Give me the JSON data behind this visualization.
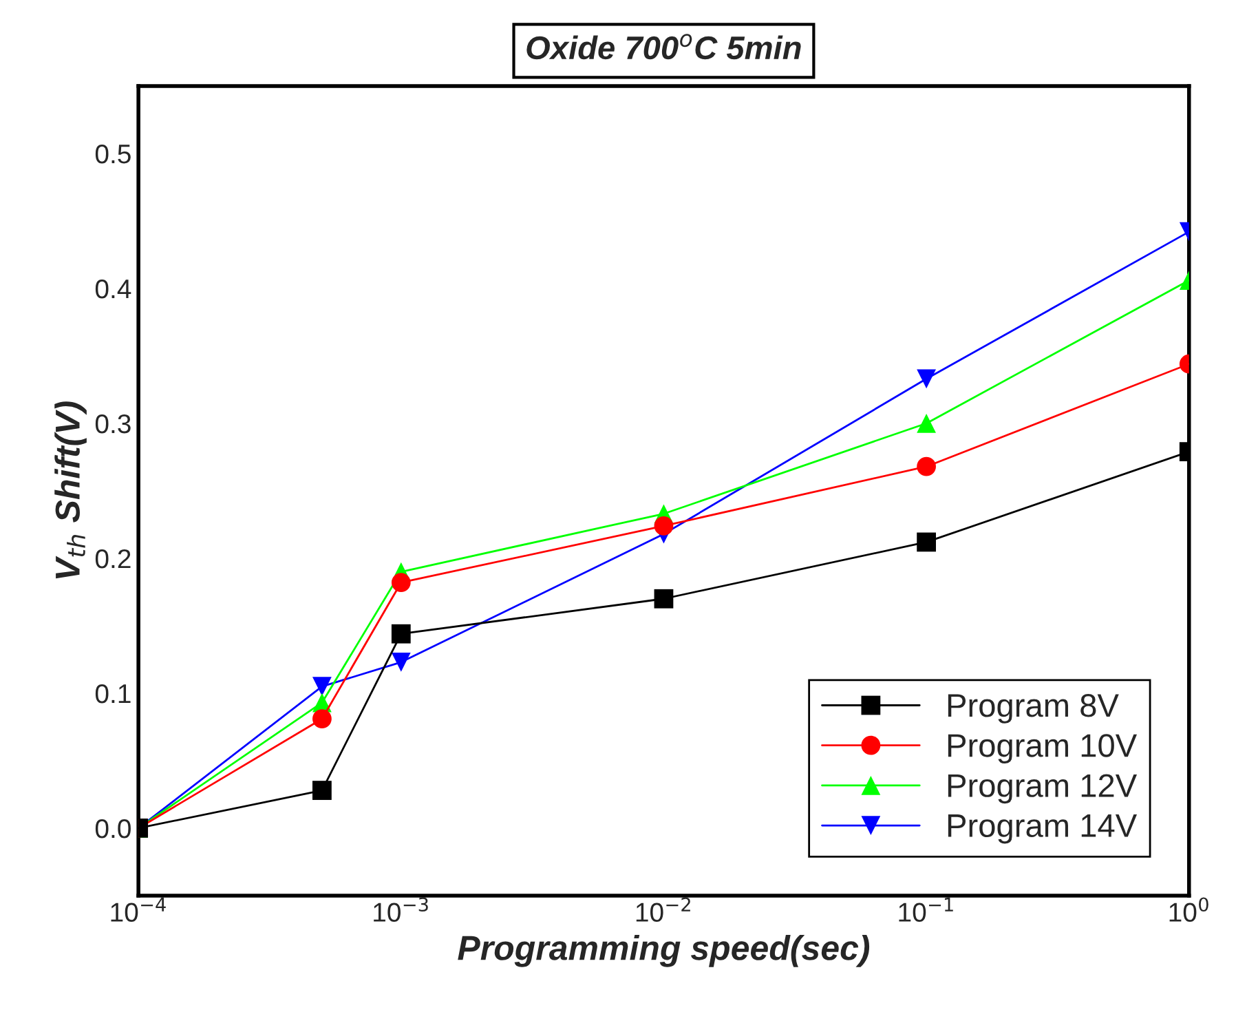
{
  "chart_data": {
    "type": "line",
    "title": "Oxide 700$^{o}$C 5min",
    "xlabel": "Programming speed(sec)",
    "ylabel": "V$_{th}$ Shift(V)",
    "x": [
      0.0001,
      0.0005,
      0.001,
      0.01,
      0.1,
      1
    ],
    "series": [
      {
        "name": "Program 8V",
        "color": "#000000",
        "marker": "square",
        "values": [
          0.0,
          0.028,
          0.144,
          0.17,
          0.212,
          0.279
        ]
      },
      {
        "name": "Program 10V",
        "color": "#ff0000",
        "marker": "circle",
        "values": [
          0.0,
          0.081,
          0.182,
          0.224,
          0.268,
          0.344
        ]
      },
      {
        "name": "Program 12V",
        "color": "#00ff00",
        "marker": "triangle",
        "values": [
          0.0,
          0.093,
          0.19,
          0.233,
          0.3,
          0.406
        ]
      },
      {
        "name": "Program 14V",
        "color": "#0000ff",
        "marker": "triangle_down",
        "values": [
          0.0,
          0.105,
          0.123,
          0.218,
          0.333,
          0.442
        ]
      }
    ],
    "log": "x",
    "xlim": [
      0.0001,
      1
    ],
    "xticks": [
      {
        "value": 0.0001,
        "label": "10$^{−4}$"
      },
      {
        "value": 0.001,
        "label": "10$^{−3}$"
      },
      {
        "value": 0.01,
        "label": "10$^{−2}$"
      },
      {
        "value": 0.1,
        "label": "10$^{−1}$"
      },
      {
        "value": 1,
        "label": "10$^{0}$"
      }
    ],
    "ylim": [
      -0.05,
      0.55
    ],
    "yticks": [
      {
        "value": 0.0,
        "label": "0.0"
      },
      {
        "value": 0.1,
        "label": "0.1"
      },
      {
        "value": 0.2,
        "label": "0.2"
      },
      {
        "value": 0.3,
        "label": "0.3"
      },
      {
        "value": 0.4,
        "label": "0.4"
      },
      {
        "value": 0.5,
        "label": "0.5"
      }
    ],
    "grid": false,
    "legend": "bottom right",
    "line_style": "solid"
  }
}
